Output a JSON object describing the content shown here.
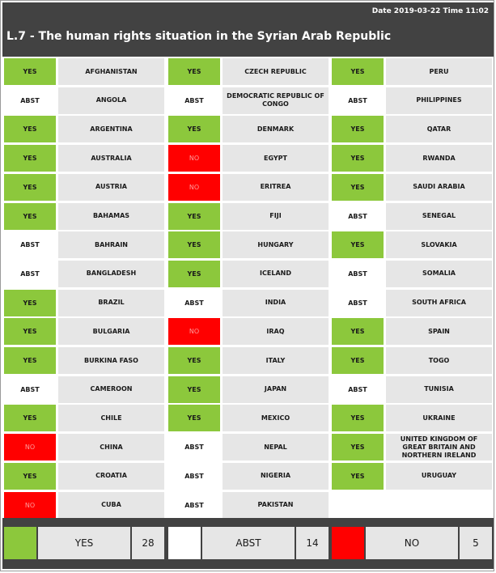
{
  "header": {
    "datetime": "Date 2019-03-22  Time 11:02",
    "title": "L.7 - The human rights situation in the Syrian Arab Republic"
  },
  "colors": {
    "yes": "#8cc83c",
    "abst": "#ffffff",
    "no": "#ff0000",
    "header_bg": "#424242",
    "cell_bg": "#e6e6e6"
  },
  "votes": [
    {
      "country": "AFGHANISTAN",
      "vote": "YES"
    },
    {
      "country": "ANGOLA",
      "vote": "ABST"
    },
    {
      "country": "ARGENTINA",
      "vote": "YES"
    },
    {
      "country": "AUSTRALIA",
      "vote": "YES"
    },
    {
      "country": "AUSTRIA",
      "vote": "YES"
    },
    {
      "country": "BAHAMAS",
      "vote": "YES"
    },
    {
      "country": "BAHRAIN",
      "vote": "ABST"
    },
    {
      "country": "BANGLADESH",
      "vote": "ABST"
    },
    {
      "country": "BRAZIL",
      "vote": "YES"
    },
    {
      "country": "BULGARIA",
      "vote": "YES"
    },
    {
      "country": "BURKINA FASO",
      "vote": "YES"
    },
    {
      "country": "CAMEROON",
      "vote": "ABST"
    },
    {
      "country": "CHILE",
      "vote": "YES"
    },
    {
      "country": "CHINA",
      "vote": "NO"
    },
    {
      "country": "CROATIA",
      "vote": "YES"
    },
    {
      "country": "CUBA",
      "vote": "NO"
    },
    {
      "country": "CZECH REPUBLIC",
      "vote": "YES"
    },
    {
      "country": "DEMOCRATIC REPUBLIC OF CONGO",
      "vote": "ABST"
    },
    {
      "country": "DENMARK",
      "vote": "YES"
    },
    {
      "country": "EGYPT",
      "vote": "NO"
    },
    {
      "country": "ERITREA",
      "vote": "NO"
    },
    {
      "country": "FIJI",
      "vote": "YES"
    },
    {
      "country": "HUNGARY",
      "vote": "YES"
    },
    {
      "country": "ICELAND",
      "vote": "YES"
    },
    {
      "country": "INDIA",
      "vote": "ABST"
    },
    {
      "country": "IRAQ",
      "vote": "NO"
    },
    {
      "country": "ITALY",
      "vote": "YES"
    },
    {
      "country": "JAPAN",
      "vote": "YES"
    },
    {
      "country": "MEXICO",
      "vote": "YES"
    },
    {
      "country": "NEPAL",
      "vote": "ABST"
    },
    {
      "country": "NIGERIA",
      "vote": "ABST"
    },
    {
      "country": "PAKISTAN",
      "vote": "ABST"
    },
    {
      "country": "PERU",
      "vote": "YES"
    },
    {
      "country": "PHILIPPINES",
      "vote": "ABST"
    },
    {
      "country": "QATAR",
      "vote": "YES"
    },
    {
      "country": "RWANDA",
      "vote": "YES"
    },
    {
      "country": "SAUDI ARABIA",
      "vote": "YES"
    },
    {
      "country": "SENEGAL",
      "vote": "ABST"
    },
    {
      "country": "SLOVAKIA",
      "vote": "YES"
    },
    {
      "country": "SOMALIA",
      "vote": "ABST"
    },
    {
      "country": "SOUTH AFRICA",
      "vote": "ABST"
    },
    {
      "country": "SPAIN",
      "vote": "YES"
    },
    {
      "country": "TOGO",
      "vote": "YES"
    },
    {
      "country": "TUNISIA",
      "vote": "ABST"
    },
    {
      "country": "UKRAINE",
      "vote": "YES"
    },
    {
      "country": "UNITED KINGDOM OF GREAT BRITAIN AND NORTHERN IRELAND",
      "vote": "YES"
    },
    {
      "country": "URUGUAY",
      "vote": "YES"
    }
  ],
  "summary": {
    "yes": {
      "label": "YES",
      "count": "28"
    },
    "abst": {
      "label": "ABST",
      "count": "14"
    },
    "no": {
      "label": "NO",
      "count": "5"
    }
  }
}
